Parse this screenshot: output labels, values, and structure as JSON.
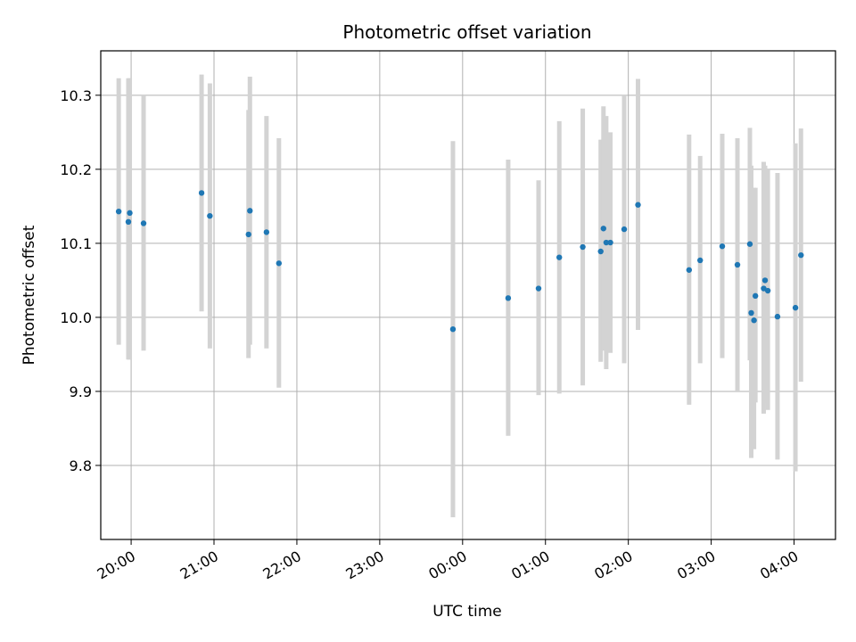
{
  "chart_data": {
    "type": "scatter",
    "title": "Photometric offset variation",
    "xlabel": "UTC time",
    "ylabel": "Photometric offset",
    "xlim": [
      "2023-01-01T19:38",
      "2023-01-02T04:30"
    ],
    "ylim": [
      9.7,
      10.36
    ],
    "grid": true,
    "x_ticks": [
      {
        "x": "2023-01-01T20:00",
        "label": "20:00"
      },
      {
        "x": "2023-01-01T21:00",
        "label": "21:00"
      },
      {
        "x": "2023-01-01T22:00",
        "label": "22:00"
      },
      {
        "x": "2023-01-01T23:00",
        "label": "23:00"
      },
      {
        "x": "2023-01-02T00:00",
        "label": "00:00"
      },
      {
        "x": "2023-01-02T01:00",
        "label": "01:00"
      },
      {
        "x": "2023-01-02T02:00",
        "label": "02:00"
      },
      {
        "x": "2023-01-02T03:00",
        "label": "03:00"
      },
      {
        "x": "2023-01-02T04:00",
        "label": "04:00"
      }
    ],
    "y_ticks": [
      {
        "y": 9.8,
        "label": "9.8"
      },
      {
        "y": 9.9,
        "label": "9.9"
      },
      {
        "y": 10.0,
        "label": "10.0"
      },
      {
        "y": 10.1,
        "label": "10.1"
      },
      {
        "y": 10.2,
        "label": "10.2"
      },
      {
        "y": 10.3,
        "label": "10.3"
      }
    ],
    "colors": {
      "point": "#1f77b4",
      "error_bar": "#d3d3d3",
      "grid": "#b0b0b0"
    },
    "points": [
      {
        "x": "2023-01-01T19:51",
        "y": 10.143,
        "y_low": 9.963,
        "y_high": 10.323
      },
      {
        "x": "2023-01-01T19:58",
        "y": 10.129,
        "y_low": 9.943,
        "y_high": 10.323
      },
      {
        "x": "2023-01-01T19:59",
        "y": 10.141,
        "y_low": 9.943,
        "y_high": 10.323
      },
      {
        "x": "2023-01-01T20:09",
        "y": 10.127,
        "y_low": 9.955,
        "y_high": 10.3
      },
      {
        "x": "2023-01-01T20:51",
        "y": 10.168,
        "y_low": 10.008,
        "y_high": 10.328
      },
      {
        "x": "2023-01-01T20:57",
        "y": 10.137,
        "y_low": 9.958,
        "y_high": 10.316
      },
      {
        "x": "2023-01-01T21:25",
        "y": 10.112,
        "y_low": 9.945,
        "y_high": 10.28
      },
      {
        "x": "2023-01-01T21:26",
        "y": 10.144,
        "y_low": 9.963,
        "y_high": 10.325
      },
      {
        "x": "2023-01-01T21:38",
        "y": 10.115,
        "y_low": 9.958,
        "y_high": 10.272
      },
      {
        "x": "2023-01-01T21:47",
        "y": 10.073,
        "y_low": 9.905,
        "y_high": 10.242
      },
      {
        "x": "2023-01-01T23:53",
        "y": 9.984,
        "y_low": 9.73,
        "y_high": 10.238
      },
      {
        "x": "2023-01-02T00:33",
        "y": 10.026,
        "y_low": 9.84,
        "y_high": 10.213
      },
      {
        "x": "2023-01-02T00:55",
        "y": 10.039,
        "y_low": 9.895,
        "y_high": 10.185
      },
      {
        "x": "2023-01-02T01:10",
        "y": 10.081,
        "y_low": 9.897,
        "y_high": 10.265
      },
      {
        "x": "2023-01-02T01:27",
        "y": 10.095,
        "y_low": 9.908,
        "y_high": 10.282
      },
      {
        "x": "2023-01-02T01:40",
        "y": 10.089,
        "y_low": 9.94,
        "y_high": 10.24
      },
      {
        "x": "2023-01-02T01:42",
        "y": 10.12,
        "y_low": 9.955,
        "y_high": 10.285
      },
      {
        "x": "2023-01-02T01:44",
        "y": 10.101,
        "y_low": 9.93,
        "y_high": 10.272
      },
      {
        "x": "2023-01-02T01:47",
        "y": 10.101,
        "y_low": 9.952,
        "y_high": 10.25
      },
      {
        "x": "2023-01-02T01:57",
        "y": 10.119,
        "y_low": 9.938,
        "y_high": 10.3
      },
      {
        "x": "2023-01-02T02:07",
        "y": 10.152,
        "y_low": 9.983,
        "y_high": 10.322
      },
      {
        "x": "2023-01-02T02:44",
        "y": 10.064,
        "y_low": 9.882,
        "y_high": 10.247
      },
      {
        "x": "2023-01-02T02:52",
        "y": 10.077,
        "y_low": 9.938,
        "y_high": 10.218
      },
      {
        "x": "2023-01-02T03:08",
        "y": 10.096,
        "y_low": 9.945,
        "y_high": 10.248
      },
      {
        "x": "2023-01-02T03:19",
        "y": 10.071,
        "y_low": 9.9,
        "y_high": 10.242
      },
      {
        "x": "2023-01-02T03:28",
        "y": 10.099,
        "y_low": 9.942,
        "y_high": 10.256
      },
      {
        "x": "2023-01-02T03:29",
        "y": 10.006,
        "y_low": 9.81,
        "y_high": 10.205
      },
      {
        "x": "2023-01-02T03:31",
        "y": 9.996,
        "y_low": 9.822,
        "y_high": 10.175
      },
      {
        "x": "2023-01-02T03:32",
        "y": 10.029,
        "y_low": 9.885,
        "y_high": 10.175
      },
      {
        "x": "2023-01-02T03:38",
        "y": 10.039,
        "y_low": 9.87,
        "y_high": 10.21
      },
      {
        "x": "2023-01-02T03:39",
        "y": 10.05,
        "y_low": 9.885,
        "y_high": 10.205
      },
      {
        "x": "2023-01-02T03:41",
        "y": 10.036,
        "y_low": 9.875,
        "y_high": 10.2
      },
      {
        "x": "2023-01-02T03:48",
        "y": 10.001,
        "y_low": 9.808,
        "y_high": 10.195
      },
      {
        "x": "2023-01-02T04:01",
        "y": 10.013,
        "y_low": 9.792,
        "y_high": 10.235
      },
      {
        "x": "2023-01-02T04:05",
        "y": 10.084,
        "y_low": 9.913,
        "y_high": 10.255
      }
    ]
  }
}
